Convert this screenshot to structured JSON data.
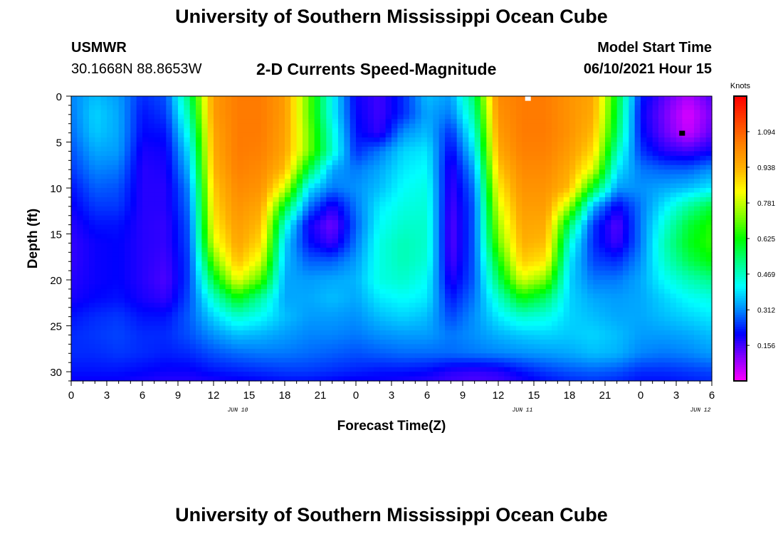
{
  "header": {
    "title": "University of Southern Mississippi Ocean Cube",
    "station": "USMWR",
    "coords": "30.1668N  88.8653W",
    "product": "2-D Currents Speed-Magnitude",
    "model_start_label": "Model Start Time",
    "model_start_value": "06/10/2021 Hour 15"
  },
  "footer": {
    "title": "University of Southern Mississippi Ocean Cube"
  },
  "chart_data": {
    "type": "heatmap",
    "xlabel": "Forecast Time(Z)",
    "ylabel": "Depth (ft)",
    "colorbar_label": "Knots",
    "x_tick_labels": [
      "0",
      "3",
      "6",
      "9",
      "12",
      "15",
      "18",
      "21",
      "0",
      "3",
      "6",
      "9",
      "12",
      "15",
      "18",
      "21",
      "0",
      "3",
      "6"
    ],
    "x_hours": [
      0,
      3,
      6,
      9,
      12,
      15,
      18,
      21,
      24,
      27,
      30,
      33,
      36,
      39,
      42,
      45,
      48,
      51,
      54
    ],
    "date_labels": [
      {
        "hour": 15,
        "label": "JUN 10"
      },
      {
        "hour": 39,
        "label": "JUN 11"
      },
      {
        "hour": 54,
        "label": "JUN 12"
      }
    ],
    "xlim": [
      0,
      54
    ],
    "y_ticks": [
      0,
      5,
      10,
      15,
      20,
      25,
      30
    ],
    "ylim": [
      0,
      31
    ],
    "y_inverted": true,
    "colorbar_ticks": [
      1.094,
      0.938,
      0.781,
      0.625,
      0.469,
      0.312,
      0.156
    ],
    "colorbar_range": [
      0.0,
      1.25
    ],
    "palette": [
      "#ff00ff",
      "#8800ff",
      "#0000ff",
      "#0088ff",
      "#00ffff",
      "#00ff88",
      "#00ff00",
      "#88ff00",
      "#ffff00",
      "#ffb000",
      "#ff8000",
      "#ff4000",
      "#ff0000"
    ],
    "grid": false,
    "speed_samples": {
      "description": "Speed in knots: rows = depths (ft), columns = forecast hours",
      "hours": [
        0,
        2,
        4,
        6,
        8,
        10,
        12,
        14,
        16,
        18,
        20,
        22,
        24,
        26,
        28,
        30,
        32,
        34,
        36,
        38,
        40,
        42,
        44,
        46,
        48,
        50,
        52,
        54
      ],
      "depths": [
        0,
        2,
        4,
        6,
        8,
        10,
        12,
        14,
        16,
        18,
        20,
        22,
        24,
        26,
        28,
        30,
        31
      ],
      "values": [
        [
          0.31,
          0.36,
          0.33,
          0.24,
          0.27,
          0.55,
          0.98,
          1.05,
          1.05,
          0.98,
          0.7,
          0.42,
          0.2,
          0.16,
          0.24,
          0.36,
          0.33,
          0.55,
          1.02,
          1.05,
          1.05,
          1.0,
          0.96,
          0.6,
          0.23,
          0.14,
          0.07,
          0.15
        ],
        [
          0.3,
          0.38,
          0.34,
          0.22,
          0.25,
          0.5,
          0.98,
          1.05,
          1.05,
          0.98,
          0.7,
          0.42,
          0.21,
          0.16,
          0.24,
          0.34,
          0.3,
          0.5,
          1.0,
          1.05,
          1.05,
          1.0,
          0.95,
          0.58,
          0.21,
          0.12,
          0.03,
          0.12
        ],
        [
          0.29,
          0.37,
          0.34,
          0.21,
          0.22,
          0.45,
          0.96,
          1.05,
          1.05,
          0.97,
          0.72,
          0.45,
          0.22,
          0.17,
          0.32,
          0.36,
          0.24,
          0.45,
          0.98,
          1.05,
          1.05,
          1.0,
          0.92,
          0.55,
          0.22,
          0.13,
          0.05,
          0.14
        ],
        [
          0.27,
          0.34,
          0.33,
          0.19,
          0.2,
          0.4,
          0.95,
          1.05,
          1.04,
          0.96,
          0.72,
          0.46,
          0.24,
          0.3,
          0.38,
          0.4,
          0.2,
          0.4,
          0.95,
          1.04,
          1.04,
          0.98,
          0.88,
          0.48,
          0.25,
          0.18,
          0.16,
          0.2
        ],
        [
          0.25,
          0.31,
          0.3,
          0.18,
          0.19,
          0.36,
          0.93,
          1.04,
          1.02,
          0.92,
          0.58,
          0.34,
          0.3,
          0.34,
          0.4,
          0.42,
          0.17,
          0.34,
          0.9,
          1.02,
          1.02,
          0.95,
          0.8,
          0.4,
          0.3,
          0.28,
          0.28,
          0.32
        ],
        [
          0.22,
          0.28,
          0.27,
          0.18,
          0.18,
          0.32,
          0.9,
          1.02,
          1.0,
          0.8,
          0.4,
          0.3,
          0.32,
          0.36,
          0.42,
          0.44,
          0.16,
          0.3,
          0.85,
          1.0,
          1.0,
          0.92,
          0.6,
          0.33,
          0.32,
          0.34,
          0.36,
          0.4
        ],
        [
          0.2,
          0.25,
          0.25,
          0.18,
          0.18,
          0.3,
          0.88,
          1.0,
          0.96,
          0.6,
          0.3,
          0.18,
          0.3,
          0.4,
          0.44,
          0.45,
          0.15,
          0.28,
          0.8,
          0.98,
          0.98,
          0.75,
          0.35,
          0.2,
          0.3,
          0.4,
          0.5,
          0.58
        ],
        [
          0.18,
          0.22,
          0.22,
          0.18,
          0.17,
          0.28,
          0.85,
          0.98,
          0.92,
          0.45,
          0.2,
          0.12,
          0.28,
          0.42,
          0.46,
          0.46,
          0.14,
          0.28,
          0.75,
          0.96,
          0.95,
          0.55,
          0.25,
          0.14,
          0.3,
          0.45,
          0.58,
          0.65
        ],
        [
          0.17,
          0.2,
          0.21,
          0.18,
          0.17,
          0.27,
          0.8,
          0.96,
          0.88,
          0.38,
          0.22,
          0.16,
          0.3,
          0.44,
          0.48,
          0.46,
          0.14,
          0.28,
          0.7,
          0.94,
          0.92,
          0.45,
          0.24,
          0.16,
          0.3,
          0.48,
          0.6,
          0.66
        ],
        [
          0.17,
          0.2,
          0.21,
          0.18,
          0.16,
          0.26,
          0.7,
          0.92,
          0.8,
          0.36,
          0.28,
          0.28,
          0.33,
          0.44,
          0.48,
          0.45,
          0.15,
          0.28,
          0.62,
          0.9,
          0.86,
          0.4,
          0.26,
          0.24,
          0.32,
          0.46,
          0.56,
          0.62
        ],
        [
          0.18,
          0.2,
          0.21,
          0.18,
          0.15,
          0.26,
          0.58,
          0.82,
          0.68,
          0.34,
          0.33,
          0.34,
          0.35,
          0.44,
          0.46,
          0.42,
          0.18,
          0.28,
          0.55,
          0.8,
          0.72,
          0.38,
          0.3,
          0.3,
          0.34,
          0.42,
          0.48,
          0.52
        ],
        [
          0.19,
          0.21,
          0.22,
          0.19,
          0.17,
          0.27,
          0.46,
          0.62,
          0.5,
          0.34,
          0.34,
          0.36,
          0.34,
          0.4,
          0.42,
          0.4,
          0.22,
          0.3,
          0.46,
          0.62,
          0.55,
          0.38,
          0.34,
          0.33,
          0.34,
          0.38,
          0.42,
          0.44
        ],
        [
          0.22,
          0.24,
          0.25,
          0.22,
          0.22,
          0.28,
          0.38,
          0.46,
          0.42,
          0.36,
          0.33,
          0.33,
          0.32,
          0.36,
          0.38,
          0.36,
          0.26,
          0.32,
          0.4,
          0.46,
          0.44,
          0.38,
          0.36,
          0.34,
          0.34,
          0.36,
          0.38,
          0.4
        ],
        [
          0.24,
          0.25,
          0.26,
          0.24,
          0.24,
          0.27,
          0.32,
          0.36,
          0.35,
          0.33,
          0.31,
          0.31,
          0.3,
          0.32,
          0.33,
          0.33,
          0.3,
          0.32,
          0.35,
          0.37,
          0.38,
          0.37,
          0.38,
          0.36,
          0.33,
          0.33,
          0.34,
          0.36
        ],
        [
          0.24,
          0.24,
          0.25,
          0.24,
          0.23,
          0.24,
          0.27,
          0.29,
          0.3,
          0.3,
          0.29,
          0.28,
          0.27,
          0.28,
          0.29,
          0.29,
          0.29,
          0.3,
          0.31,
          0.32,
          0.33,
          0.34,
          0.36,
          0.35,
          0.31,
          0.3,
          0.31,
          0.33
        ],
        [
          0.22,
          0.22,
          0.22,
          0.21,
          0.2,
          0.2,
          0.22,
          0.23,
          0.24,
          0.25,
          0.25,
          0.24,
          0.23,
          0.22,
          0.22,
          0.21,
          0.18,
          0.17,
          0.18,
          0.22,
          0.25,
          0.27,
          0.28,
          0.27,
          0.24,
          0.24,
          0.25,
          0.26
        ],
        [
          0.2,
          0.2,
          0.2,
          0.19,
          0.18,
          0.18,
          0.19,
          0.2,
          0.21,
          0.22,
          0.22,
          0.21,
          0.2,
          0.2,
          0.19,
          0.18,
          0.16,
          0.15,
          0.16,
          0.19,
          0.22,
          0.24,
          0.25,
          0.24,
          0.22,
          0.22,
          0.23,
          0.24
        ]
      ]
    },
    "markers": [
      {
        "hour": 38.5,
        "depth": 0.2,
        "color": "#ffffff"
      },
      {
        "hour": 51.5,
        "depth": 4.0,
        "color": "#000000"
      }
    ]
  }
}
